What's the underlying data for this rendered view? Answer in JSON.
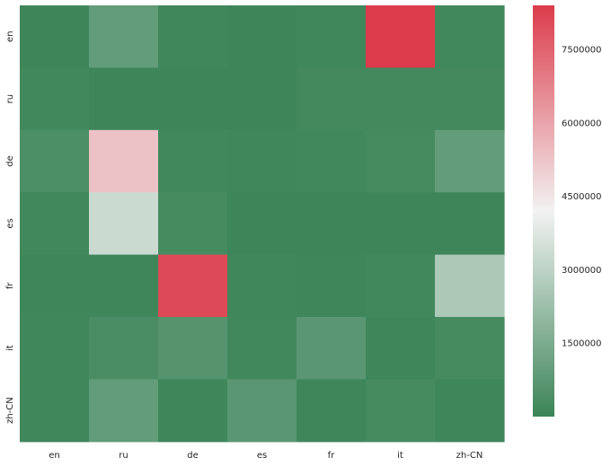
{
  "chart_data": {
    "type": "heatmap",
    "title": "",
    "xlabel": "",
    "ylabel": "",
    "x_labels": [
      "en",
      "ru",
      "de",
      "es",
      "fr",
      "it",
      "zh-CN"
    ],
    "y_labels": [
      "en",
      "ru",
      "de",
      "es",
      "fr",
      "it",
      "zh-CN"
    ],
    "values": [
      [
        80000,
        900000,
        120000,
        60000,
        120000,
        8400000,
        150000
      ],
      [
        150000,
        60000,
        60000,
        60000,
        200000,
        200000,
        200000
      ],
      [
        400000,
        5300000,
        150000,
        120000,
        150000,
        250000,
        900000
      ],
      [
        150000,
        3300000,
        250000,
        60000,
        60000,
        60000,
        60000
      ],
      [
        100000,
        100000,
        8100000,
        120000,
        100000,
        150000,
        2600000
      ],
      [
        120000,
        350000,
        600000,
        150000,
        700000,
        100000,
        250000
      ],
      [
        120000,
        900000,
        100000,
        700000,
        100000,
        250000,
        100000
      ]
    ],
    "colorbar": {
      "min": 0,
      "max": 8400000,
      "ticks": [
        1500000,
        3000000,
        4500000,
        6000000,
        7500000
      ],
      "tick_labels": [
        "1500000",
        "3000000",
        "4500000",
        "6000000",
        "7500000"
      ],
      "colors": [
        "#3b8457",
        "#f2f2f2",
        "#dc3c4b"
      ]
    }
  }
}
